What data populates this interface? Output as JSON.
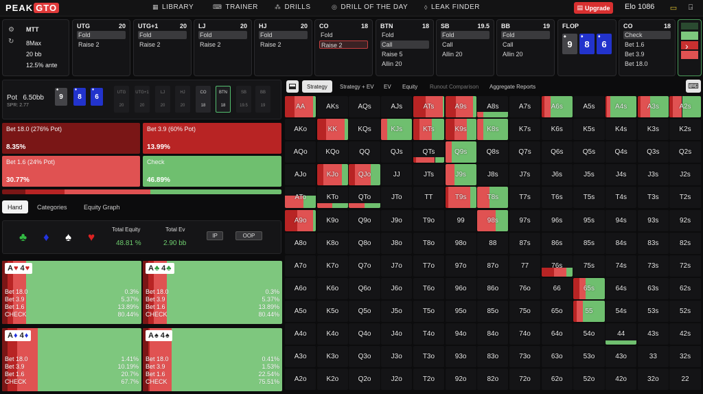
{
  "brand": {
    "peak": "PEAK",
    "gto": "GTO"
  },
  "nav": [
    {
      "label": "LIBRARY",
      "icon": "grid-icon"
    },
    {
      "label": "TRAINER",
      "icon": "gamepad-icon"
    },
    {
      "label": "DRILLS",
      "icon": "drill-icon"
    },
    {
      "label": "DRILL OF THE DAY",
      "icon": "target-icon"
    },
    {
      "label": "LEAK FINDER",
      "icon": "drop-icon"
    }
  ],
  "upgrade": "Upgrade",
  "elo": "Elo  1086",
  "game": {
    "format": "MTT",
    "table": "8Max",
    "stack": "20 bb",
    "ante": "12.5% ante"
  },
  "positions": [
    {
      "name": "UTG",
      "stack": "20",
      "actions": [
        "Fold",
        "Raise 2"
      ],
      "sel": 0
    },
    {
      "name": "UTG+1",
      "stack": "20",
      "actions": [
        "Fold",
        "Raise 2"
      ],
      "sel": 0
    },
    {
      "name": "LJ",
      "stack": "20",
      "actions": [
        "Fold",
        "Raise 2"
      ],
      "sel": 0
    },
    {
      "name": "HJ",
      "stack": "20",
      "actions": [
        "Fold",
        "Raise 2"
      ],
      "sel": 0
    },
    {
      "name": "CO",
      "stack": "18",
      "actions": [
        "Fold",
        "Raise 2"
      ],
      "sel": 1,
      "selred": true
    },
    {
      "name": "BTN",
      "stack": "18",
      "actions": [
        "Fold",
        "Call",
        "Raise 5",
        "Allin 20"
      ],
      "sel": 1
    },
    {
      "name": "SB",
      "stack": "19.5",
      "actions": [
        "Fold",
        "Call",
        "Allin 20"
      ],
      "sel": 0
    },
    {
      "name": "BB",
      "stack": "19",
      "actions": [
        "Fold",
        "Call",
        "Allin 20"
      ],
      "sel": 0
    }
  ],
  "flop": {
    "label": "FLOP",
    "cards": [
      {
        "rank": "9",
        "suit": "♠",
        "color": "#444448"
      },
      {
        "rank": "8",
        "suit": "♦",
        "color": "#2233cc"
      },
      {
        "rank": "6",
        "suit": "♦",
        "color": "#2233cc"
      }
    ]
  },
  "co_card": {
    "name": "CO",
    "stack": "18",
    "actions": [
      "Check",
      "Bet 1.6",
      "Bet 3.9",
      "Bet 18.0"
    ]
  },
  "pot": {
    "label": "Pot",
    "value": "6.50bb",
    "spr": "SPR: 2.77"
  },
  "seats": [
    {
      "name": "UTG",
      "stack": "20"
    },
    {
      "name": "UTG+1",
      "stack": "20"
    },
    {
      "name": "LJ",
      "stack": "20"
    },
    {
      "name": "HJ",
      "stack": "20"
    },
    {
      "name": "CO",
      "stack": "18"
    },
    {
      "name": "BTN",
      "stack": "18"
    },
    {
      "name": "SB",
      "stack": "19.5"
    },
    {
      "name": "BB",
      "stack": "19"
    }
  ],
  "actions": [
    {
      "label": "Bet 18.0 (276% Pot)",
      "freq": "8.35%",
      "color": "#7a1616"
    },
    {
      "label": "Bet 3.9 (60% Pot)",
      "freq": "13.99%",
      "color": "#b82424"
    },
    {
      "label": "Bet 1.6 (24% Pot)",
      "freq": "30.77%",
      "color": "#e05252"
    },
    {
      "label": "Check",
      "freq": "46.89%",
      "color": "#6fbf6f"
    }
  ],
  "freq_values": [
    8.35,
    13.99,
    30.77,
    46.89
  ],
  "tabs": [
    "Hand",
    "Categories",
    "Equity Graph"
  ],
  "suits": [
    {
      "s": "♣",
      "c": "#33bb44"
    },
    {
      "s": "♦",
      "c": "#2233dd"
    },
    {
      "s": "♠",
      "c": "#ffffff"
    },
    {
      "s": "♥",
      "c": "#dd2222"
    }
  ],
  "equity": {
    "label": "Total Equity",
    "value": "48.81 %"
  },
  "ev": {
    "label": "Total Ev",
    "value": "2.90 bb"
  },
  "ip": "IP",
  "oop": "OOP",
  "combos": [
    {
      "r1": "A",
      "s1": "♥",
      "r2": "4",
      "s2": "♥",
      "c1": "#cc2222",
      "c2": "#cc2222",
      "freqs": [
        0.3,
        5.37,
        13.89,
        80.44
      ],
      "rows": [
        [
          "Bet 18.0",
          "0.3%"
        ],
        [
          "Bet 3.9",
          "5.37%"
        ],
        [
          "Bet 1.6",
          "13.89%"
        ],
        [
          "CHECK",
          "80.44%"
        ]
      ]
    },
    {
      "r1": "A",
      "s1": "♣",
      "r2": "4",
      "s2": "♣",
      "c1": "#2a9a3a",
      "c2": "#2a9a3a",
      "freqs": [
        0.3,
        5.37,
        13.89,
        80.44
      ],
      "rows": [
        [
          "Bet 18.0",
          "0.3%"
        ],
        [
          "Bet 3.9",
          "5.37%"
        ],
        [
          "Bet 1.6",
          "13.89%"
        ],
        [
          "CHECK",
          "80.44%"
        ]
      ]
    },
    {
      "r1": "A",
      "s1": "♦",
      "r2": "4",
      "s2": "♦",
      "c1": "#2233dd",
      "c2": "#2233dd",
      "freqs": [
        1.41,
        10.19,
        20.7,
        67.7
      ],
      "rows": [
        [
          "Bet 18.0",
          "1.41%"
        ],
        [
          "Bet 3.9",
          "10.19%"
        ],
        [
          "Bet 1.6",
          "20.7%"
        ],
        [
          "CHECK",
          "67.7%"
        ]
      ]
    },
    {
      "r1": "A",
      "s1": "♠",
      "r2": "4",
      "s2": "♠",
      "c1": "#222222",
      "c2": "#222222",
      "freqs": [
        0.41,
        1.53,
        22.54,
        75.51
      ],
      "rows": [
        [
          "Bet 18.0",
          "0.41%"
        ],
        [
          "Bet 3.9",
          "1.53%"
        ],
        [
          "Bet 1.6",
          "22.54%"
        ],
        [
          "CHECK",
          "75.51%"
        ]
      ]
    }
  ],
  "right_tabs": [
    "Strategy",
    "Strategy + EV",
    "EV",
    "Equity",
    "Runout Comparison",
    "Aggregate Reports"
  ],
  "colors": {
    "big": "#7a1616",
    "mid": "#b82424",
    "small": "#e05252",
    "check": "#6fbf6f"
  },
  "matrix_ranks": [
    "A",
    "K",
    "Q",
    "J",
    "T",
    "9",
    "8",
    "7",
    "6",
    "5",
    "4",
    "3",
    "2"
  ],
  "hand_strategy": {
    "AA": [
      0,
      30,
      60,
      10
    ],
    "ATs": [
      0,
      40,
      55,
      5
    ],
    "A9s": [
      0,
      35,
      55,
      10
    ],
    "A8s": [
      0,
      0,
      20,
      80,
      0.25
    ],
    "A7s": [
      0,
      0,
      0,
      0
    ],
    "A6s": [
      0,
      10,
      20,
      70
    ],
    "A4s": [
      0,
      5,
      10,
      85
    ],
    "A3s": [
      0,
      10,
      30,
      60
    ],
    "A2s": [
      0,
      10,
      30,
      60
    ],
    "KK": [
      0,
      30,
      60,
      10
    ],
    "KJs": [
      0,
      0,
      20,
      80
    ],
    "KTs": [
      0,
      20,
      40,
      40
    ],
    "K9s": [
      0,
      30,
      40,
      30
    ],
    "K8s": [
      0,
      0,
      20,
      80
    ],
    "K7s": [
      0,
      0,
      0,
      0
    ],
    "QTs": [
      0,
      10,
      60,
      30,
      0.25
    ],
    "Q9s": [
      0,
      0,
      20,
      80
    ],
    "AJo": [
      0,
      0,
      0,
      0
    ],
    "KJo": [
      0,
      20,
      60,
      20
    ],
    "QJo": [
      0,
      20,
      50,
      30
    ],
    "J9s": [
      0,
      0,
      30,
      70
    ],
    "ATo": [
      0,
      0,
      60,
      40,
      0.6
    ],
    "KTo": [
      0,
      0,
      50,
      50,
      0.25
    ],
    "QTo": [
      0,
      0,
      50,
      50,
      0.25
    ],
    "T9s": [
      0,
      10,
      70,
      20
    ],
    "T8s": [
      0,
      0,
      40,
      60
    ],
    "A9o": [
      0,
      40,
      50,
      10
    ],
    "98s": [
      0,
      0,
      60,
      40
    ],
    "76s": [
      0,
      40,
      40,
      20,
      0.4
    ],
    "65s": [
      0,
      20,
      20,
      60
    ],
    "55": [
      0,
      10,
      20,
      70
    ],
    "44": [
      0,
      0,
      0,
      100,
      0.2
    ]
  }
}
